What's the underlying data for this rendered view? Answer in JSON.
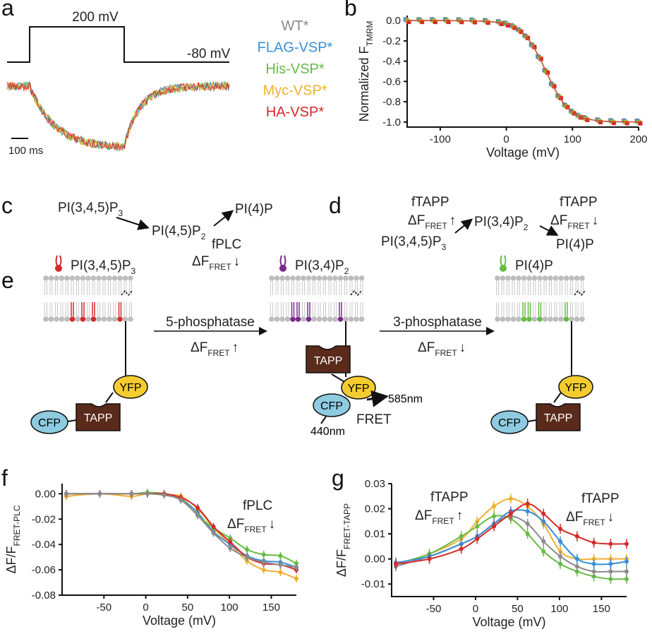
{
  "colors": {
    "WT": "#8a8a8a",
    "FLAG": "#3a8fd8",
    "His": "#66bb44",
    "Myc": "#f0b030",
    "HA": "#d42a2a",
    "purple": "#7a2a8a",
    "tapp": "#5a2a1a",
    "yfp": "#f5cc30",
    "cfp": "#8ecbe0"
  },
  "panel_labels": [
    "a",
    "b",
    "c",
    "d",
    "e",
    "f",
    "g"
  ],
  "panel_a": {
    "step_high": "200 mV",
    "step_low": "-80 mV",
    "scale_bar": "100 ms",
    "legend": [
      {
        "label": "WT*",
        "color": "#8a8a8a"
      },
      {
        "label": "FLAG-VSP*",
        "color": "#3a8fd8"
      },
      {
        "label": "His-VSP*",
        "color": "#66bb44"
      },
      {
        "label": "Myc-VSP*",
        "color": "#f0b030"
      },
      {
        "label": "HA-VSP*",
        "color": "#d42a2a"
      }
    ]
  },
  "panel_c": {
    "s1": {
      "main": "PI(3,4,5)P",
      "sub": "3"
    },
    "s2": {
      "main": "PI(4,5)P",
      "sub": "2"
    },
    "s3": "PI(4)P",
    "sensor": "fPLC",
    "delta": {
      "main": "ΔF",
      "sub": "FRET",
      "arrow": "↓"
    }
  },
  "panel_d": {
    "s1": {
      "main": "PI(3,4,5)P",
      "sub": "3"
    },
    "s2": {
      "main": "PI(3,4)P",
      "sub": "2"
    },
    "s3": "PI(4)P",
    "sensor1": "fTAPP",
    "delta1": {
      "main": "ΔF",
      "sub": "FRET",
      "arrow": "↑"
    },
    "sensor2": "fTAPP",
    "delta2": {
      "main": "ΔF",
      "sub": "FRET",
      "arrow": "↓"
    }
  },
  "panel_e": {
    "legend": [
      {
        "main": "PI(3,4,5)P",
        "sub": "3",
        "color": "#d42a2a"
      },
      {
        "main": "PI(3,4)P",
        "sub": "2",
        "color": "#7a2a8a"
      },
      {
        "main": "PI(4)P",
        "sub": "",
        "color": "#66bb44"
      }
    ],
    "step1": {
      "enzyme": "5-phosphatase",
      "main": "ΔF",
      "sub": "FRET",
      "arrow": "↑"
    },
    "step2": {
      "enzyme": "3-phosphatase",
      "main": "ΔF",
      "sub": "FRET",
      "arrow": "↓"
    },
    "proteins": {
      "cfp": "CFP",
      "tapp": "TAPP",
      "yfp": "YFP"
    },
    "emission": "585nm",
    "excitation": "440nm",
    "fret": "FRET"
  },
  "chart_data": [
    {
      "panel": "b",
      "type": "scatter",
      "xlabel": "Voltage (mV)",
      "ylabel": {
        "main": "Normalized F",
        "sub": "TMRM"
      },
      "xlim": [
        -150,
        200
      ],
      "ylim": [
        -1.05,
        0.05
      ],
      "xticks": [
        -100,
        0,
        100,
        200
      ],
      "yticks": [
        0.0,
        -0.2,
        -0.4,
        -0.6,
        -0.8,
        -1.0
      ],
      "ytick_labels": [
        "0.0",
        "-0.2",
        "-0.4",
        "-0.6",
        "-0.8",
        "-1.0"
      ],
      "x": [
        -150,
        -130,
        -110,
        -90,
        -70,
        -50,
        -30,
        -10,
        0,
        10,
        20,
        30,
        40,
        50,
        60,
        70,
        80,
        90,
        100,
        110,
        120,
        140,
        160,
        180,
        200
      ],
      "values": [
        0,
        0,
        0,
        0,
        -0.001,
        -0.003,
        -0.008,
        -0.02,
        -0.034,
        -0.058,
        -0.098,
        -0.159,
        -0.248,
        -0.365,
        -0.5,
        -0.635,
        -0.752,
        -0.841,
        -0.902,
        -0.942,
        -0.966,
        -0.988,
        -0.996,
        -0.999,
        -1.0
      ],
      "series_colors": [
        "#8a8a8a",
        "#3a8fd8",
        "#66bb44",
        "#f0b030",
        "#d42a2a"
      ],
      "grid": false
    },
    {
      "panel": "f",
      "type": "line",
      "xlabel": "Voltage (mV)",
      "ylabel": {
        "main": "ΔF/F",
        "sub": "FRET-PLC"
      },
      "xlim": [
        -100,
        180
      ],
      "ylim": [
        -0.08,
        0.008
      ],
      "xticks": [
        -50,
        0,
        50,
        100,
        150
      ],
      "yticks": [
        0.0,
        -0.02,
        -0.04,
        -0.06,
        -0.08
      ],
      "ytick_labels": [
        "0.00",
        "-0.02",
        "-0.04",
        "-0.06",
        "-0.08"
      ],
      "annotation": {
        "sensor": "fPLC",
        "main": "ΔF",
        "sub": "FRET",
        "arrow": "↓"
      },
      "x": [
        -95,
        -55,
        -17,
        2,
        22,
        42,
        62,
        81,
        101,
        121,
        141,
        161,
        180
      ],
      "error_approx": 0.003,
      "series": [
        {
          "key": "Myc",
          "color": "#f0b030",
          "values": [
            -0.002,
            0,
            -0.002,
            0,
            -0.001,
            -0.002,
            -0.012,
            -0.027,
            -0.04,
            -0.053,
            -0.06,
            -0.062,
            -0.067
          ]
        },
        {
          "key": "FLAG",
          "color": "#3a8fd8",
          "values": [
            0,
            0,
            0,
            0,
            0,
            -0.004,
            -0.015,
            -0.03,
            -0.04,
            -0.049,
            -0.053,
            -0.054,
            -0.058
          ]
        },
        {
          "key": "His",
          "color": "#66bb44",
          "values": [
            0,
            0,
            0,
            0.001,
            0,
            -0.004,
            -0.017,
            -0.027,
            -0.035,
            -0.044,
            -0.048,
            -0.049,
            -0.055
          ]
        },
        {
          "key": "HA",
          "color": "#d42a2a",
          "values": [
            0,
            0,
            0,
            0,
            0,
            -0.003,
            -0.011,
            -0.026,
            -0.038,
            -0.05,
            -0.055,
            -0.056,
            -0.06
          ]
        },
        {
          "key": "WT",
          "color": "#8a8a8a",
          "values": [
            0,
            0,
            0,
            0,
            -0.001,
            -0.005,
            -0.017,
            -0.031,
            -0.043,
            -0.05,
            -0.054,
            -0.056,
            -0.058
          ]
        }
      ],
      "grid": false
    },
    {
      "panel": "g",
      "type": "line",
      "xlabel": "Voltage (mV)",
      "ylabel": {
        "main": "ΔF/F",
        "sub": "FRET-TAPP"
      },
      "xlim": [
        -100,
        180
      ],
      "ylim": [
        -0.015,
        0.03
      ],
      "xticks": [
        -50,
        0,
        50,
        100,
        150
      ],
      "yticks": [
        0.03,
        0.02,
        0.01,
        0.0,
        -0.01
      ],
      "ytick_labels": [
        "0.03",
        "0.02",
        "0.01",
        "0.00",
        "-0.01"
      ],
      "annotations": [
        {
          "sensor": "fTAPP",
          "main": "ΔF",
          "sub": "FRET",
          "arrow": "↑"
        },
        {
          "sensor": "fTAPP",
          "main": "ΔF",
          "sub": "FRET",
          "arrow": "↓"
        }
      ],
      "x": [
        -95,
        -55,
        -17,
        2,
        22,
        42,
        62,
        81,
        101,
        121,
        141,
        161,
        180
      ],
      "error_approx": 0.002,
      "series": [
        {
          "key": "Myc",
          "color": "#f0b030",
          "values": [
            -0.002,
            0.002,
            0.008,
            0.015,
            0.021,
            0.024,
            0.021,
            0.014,
            0.003,
            0.0,
            0.0,
            0.0,
            0.0
          ]
        },
        {
          "key": "His",
          "color": "#66bb44",
          "values": [
            -0.002,
            0.002,
            0.009,
            0.013,
            0.017,
            0.016,
            0.01,
            0.003,
            -0.002,
            -0.005,
            -0.007,
            -0.008,
            -0.008
          ]
        },
        {
          "key": "WT",
          "color": "#8a8a8a",
          "values": [
            -0.003,
            0.001,
            0.006,
            0.009,
            0.014,
            0.017,
            0.014,
            0.007,
            0.001,
            -0.003,
            -0.005,
            -0.005,
            -0.005
          ]
        },
        {
          "key": "FLAG",
          "color": "#3a8fd8",
          "values": [
            -0.0015,
            0.001,
            0.006,
            0.009,
            0.014,
            0.019,
            0.019,
            0.015,
            0.007,
            0.0,
            -0.002,
            -0.002,
            -0.001
          ]
        },
        {
          "key": "HA",
          "color": "#d42a2a",
          "values": [
            -0.002,
            0.0,
            0.004,
            0.008,
            0.013,
            0.018,
            0.022,
            0.018,
            0.012,
            0.009,
            0.0065,
            0.006,
            0.006
          ]
        }
      ],
      "grid": false
    }
  ]
}
